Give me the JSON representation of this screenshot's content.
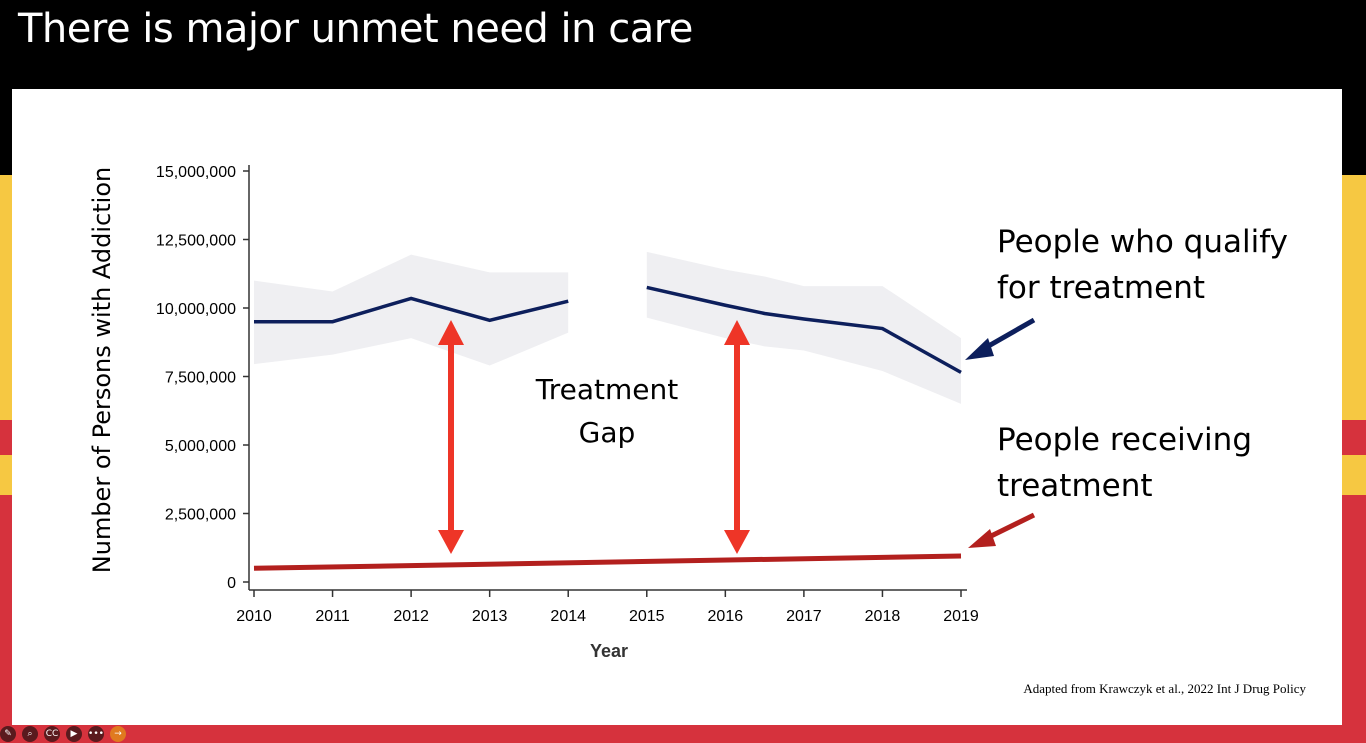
{
  "slide": {
    "title": "There is major unmet need in care",
    "citation": "Adapted from Krawczyk et al., 2022 Int J Drug Policy",
    "annotation_gap": [
      "Treatment",
      "Gap"
    ],
    "label_qualify": [
      "People who qualify",
      "for treatment"
    ],
    "label_receiving": [
      "People receiving",
      "treatment"
    ]
  },
  "toolbar": {
    "cc_label": "CC",
    "more_label": "•••",
    "next_label": "→"
  },
  "colors": {
    "qualify": "#0d1f5c",
    "receiving": "#b3201e",
    "band": "#efeff2",
    "arrow": "#ee3527"
  },
  "chart_data": {
    "type": "line",
    "xlabel": "Year",
    "ylabel": "Number of Persons with Addiction",
    "x_ticks": [
      "2010",
      "2011",
      "2012",
      "2013",
      "2014",
      "2015",
      "2016",
      "2017",
      "2018",
      "2019"
    ],
    "y_ticks": [
      "0",
      "2,500,000",
      "5,000,000",
      "7,500,000",
      "10,000,000",
      "12,500,000",
      "15,000,000"
    ],
    "ylim": [
      0,
      15000000
    ],
    "xlim": [
      2010,
      2019
    ],
    "series": [
      {
        "name": "People who qualify for treatment",
        "segments": [
          {
            "x": [
              2010,
              2011,
              2012,
              2013,
              2014
            ],
            "y": [
              9500000,
              9500000,
              10350000,
              9550000,
              10250000
            ],
            "lower": [
              7950000,
              8300000,
              8900000,
              7900000,
              9100000
            ],
            "upper": [
              11000000,
              10600000,
              11950000,
              11300000,
              11300000
            ]
          },
          {
            "x": [
              2015,
              2016,
              2016.5,
              2017,
              2018,
              2019
            ],
            "y": [
              10750000,
              10100000,
              9800000,
              9600000,
              9250000,
              7650000
            ],
            "lower": [
              9650000,
              8900000,
              8600000,
              8450000,
              7700000,
              6500000
            ],
            "upper": [
              12050000,
              11400000,
              11150000,
              10800000,
              10800000,
              8900000
            ]
          }
        ]
      },
      {
        "name": "People receiving treatment",
        "x": [
          2010,
          2019
        ],
        "y": [
          500000,
          950000
        ]
      }
    ]
  }
}
